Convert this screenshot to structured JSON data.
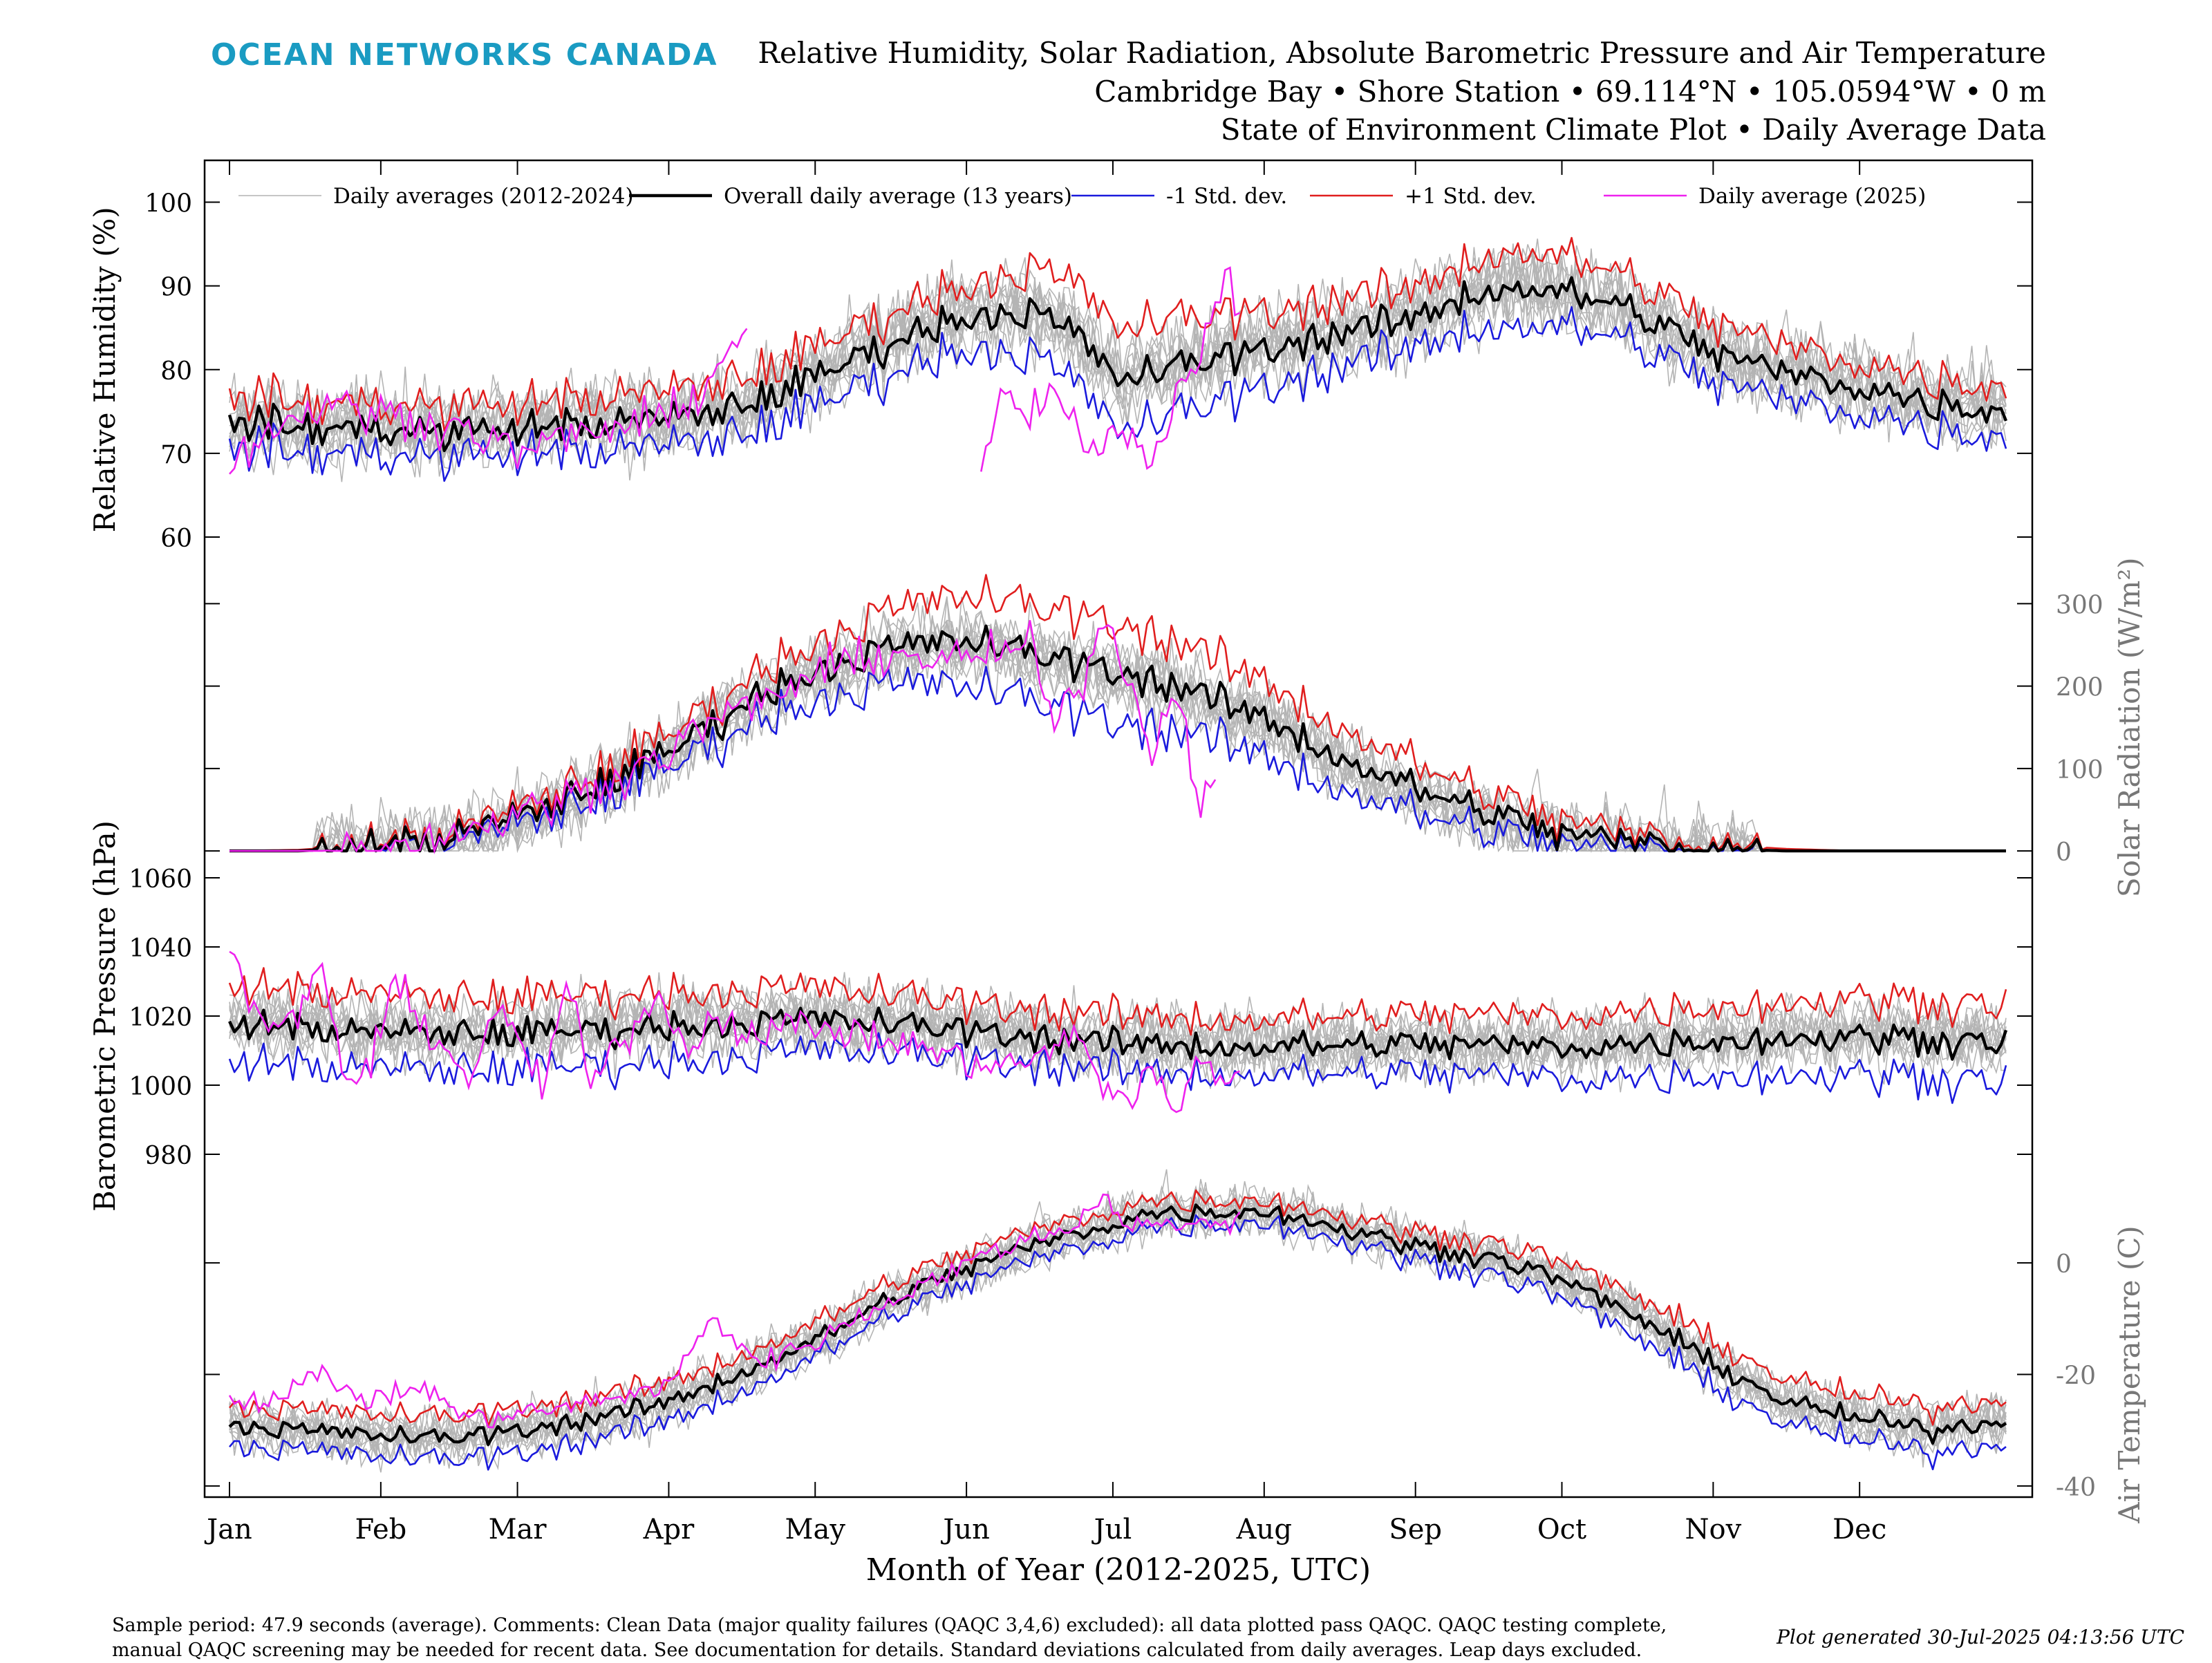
{
  "brand": "OCEAN NETWORKS CANADA",
  "title": {
    "line1": "Relative Humidity, Solar Radiation, Absolute Barometric Pressure and Air Temperature",
    "line2": "Cambridge Bay • Shore Station • 69.114°N • 105.0594°W • 0 m",
    "line3": "State of Environment Climate Plot • Daily Average Data"
  },
  "footer": {
    "comments": "Sample period: 47.9 seconds (average). Comments: Clean Data (major quality failures (QAQC 3,4,6) excluded): all data plotted pass QAQC. QAQC testing complete, manual QAQC screening may be needed for recent data. See documentation for details. Standard deviations calculated from daily averages. Leap days excluded.",
    "generated": "Plot generated 30-Jul-2025 04:13:56 UTC"
  },
  "colors": {
    "yearly": "#b4b4b4",
    "mean": "#000000",
    "minus_sd": "#1a1adc",
    "plus_sd": "#e01e1e",
    "current": "#ee22ee",
    "right_axis_text": "#777777"
  },
  "chart_data": {
    "type": "line",
    "xlabel": "Month of Year (2012-2025, UTC)",
    "x_categories": [
      "Jan",
      "Feb",
      "Mar",
      "Apr",
      "May",
      "Jun",
      "Jul",
      "Aug",
      "Sep",
      "Oct",
      "Nov",
      "Dec"
    ],
    "x_month_start_day": [
      1,
      32,
      60,
      91,
      121,
      152,
      182,
      213,
      244,
      274,
      305,
      335
    ],
    "xlim": [
      1,
      365
    ],
    "legend": {
      "placement": "top",
      "entries": [
        {
          "name": "Daily averages (2012-2024)",
          "key": "yearly"
        },
        {
          "name": "Overall daily average (13 years)",
          "key": "mean"
        },
        {
          "name": "-1 Std. dev.",
          "key": "minus_sd"
        },
        {
          "name": "+1 Std. dev.",
          "key": "plus_sd"
        },
        {
          "name": "Daily average (2025)",
          "key": "current"
        }
      ]
    },
    "panels": [
      {
        "id": "humidity",
        "ylabel": "Relative Humidity (%)",
        "axis_side": "left",
        "ylim": [
          60,
          105
        ],
        "yticks": [
          60,
          70,
          80,
          90,
          100
        ],
        "current_end_day": 208,
        "current_gap": [
          107,
          155
        ],
        "mean": {
          "day": [
            1,
            15,
            32,
            45,
            60,
            75,
            91,
            105,
            121,
            135,
            152,
            165,
            175,
            182,
            190,
            200,
            213,
            225,
            244,
            255,
            265,
            274,
            285,
            295,
            305,
            320,
            335,
            350,
            365
          ],
          "value": [
            74,
            73,
            73,
            72.5,
            73,
            73.5,
            74,
            75.5,
            79,
            83,
            86.5,
            87,
            84,
            79,
            79.5,
            81,
            82.5,
            84,
            86,
            89,
            90,
            89,
            88,
            85,
            82,
            79.5,
            78,
            76,
            75
          ]
        },
        "sd": {
          "day": [
            1,
            60,
            121,
            152,
            175,
            190,
            213,
            244,
            265,
            280,
            305,
            335,
            365
          ],
          "value": [
            3,
            3,
            3.5,
            3.8,
            6,
            6,
            4.5,
            3.5,
            4.5,
            4,
            3.5,
            3,
            3
          ]
        },
        "current_points": {
          "day": [
            1,
            10,
            20,
            30,
            40,
            50,
            60,
            70,
            80,
            90,
            100,
            107,
            155,
            160,
            165,
            170,
            175,
            180,
            185,
            190,
            195,
            200,
            205,
            208
          ],
          "value": [
            69,
            73,
            76,
            75,
            74,
            73,
            70,
            72,
            73,
            74,
            79,
            86,
            68,
            77,
            74,
            78,
            71,
            70,
            74,
            68,
            78,
            82,
            92,
            88
          ]
        },
        "noise": 2.2,
        "year_spread": 3.5
      },
      {
        "id": "solar",
        "ylabel": "Solar Radiation (W/m²)",
        "axis_side": "right",
        "ylim": [
          -15,
          380
        ],
        "yticks": [
          0,
          100,
          200,
          300
        ],
        "current_end_day": 203,
        "mean": {
          "day": [
            1,
            15,
            32,
            45,
            60,
            75,
            91,
            105,
            121,
            135,
            152,
            165,
            182,
            195,
            213,
            230,
            244,
            260,
            274,
            290,
            305,
            320,
            335,
            365
          ],
          "value": [
            0,
            0,
            5,
            15,
            40,
            75,
            120,
            175,
            220,
            245,
            255,
            240,
            220,
            200,
            160,
            110,
            75,
            45,
            20,
            10,
            3,
            0,
            0,
            0
          ]
        },
        "sd": {
          "day": [
            1,
            32,
            60,
            91,
            121,
            152,
            182,
            213,
            244,
            274,
            305,
            335,
            365
          ],
          "value": [
            0,
            3,
            10,
            20,
            35,
            55,
            60,
            45,
            30,
            15,
            5,
            0,
            0
          ]
        },
        "current_points": {
          "day": [
            1,
            20,
            32,
            45,
            60,
            75,
            91,
            100,
            110,
            121,
            135,
            150,
            165,
            170,
            175,
            180,
            185,
            190,
            195,
            200,
            203
          ],
          "value": [
            0,
            0,
            6,
            18,
            45,
            75,
            120,
            160,
            180,
            215,
            240,
            230,
            250,
            150,
            200,
            280,
            220,
            120,
            200,
            60,
            100
          ]
        },
        "noise": 22,
        "year_spread": 30,
        "nonneg": true
      },
      {
        "id": "pressure",
        "ylabel": "Barometric Pressure (hPa)",
        "axis_side": "left",
        "ylim": [
          970,
          1070
        ],
        "yticks": [
          980,
          1000,
          1020,
          1040,
          1060
        ],
        "current_end_day": 208,
        "mean": {
          "day": [
            1,
            32,
            60,
            91,
            121,
            152,
            182,
            213,
            244,
            274,
            305,
            335,
            365
          ],
          "value": [
            1018,
            1015,
            1015,
            1017,
            1019,
            1016,
            1012,
            1011,
            1012,
            1011,
            1013,
            1014,
            1013
          ]
        },
        "sd": {
          "day": [
            1,
            91,
            152,
            213,
            274,
            335,
            365
          ],
          "value": [
            11,
            10,
            8,
            8,
            9,
            11,
            11
          ]
        },
        "current_points": {
          "day": [
            1,
            5,
            10,
            15,
            20,
            25,
            30,
            35,
            40,
            45,
            50,
            55,
            60,
            65,
            70,
            75,
            80,
            85,
            90,
            95,
            100,
            110,
            120,
            130,
            140,
            150,
            160,
            170,
            175,
            180,
            185,
            190,
            195,
            200,
            205,
            208
          ],
          "value": [
            1038,
            1025,
            1015,
            1020,
            1035,
            1000,
            1005,
            1030,
            1020,
            1010,
            1002,
            1020,
            1015,
            998,
            1030,
            1000,
            1010,
            1020,
            1025,
            1010,
            1020,
            1015,
            1018,
            1014,
            1012,
            1008,
            1005,
            1010,
            1015,
            1000,
            995,
            1005,
            990,
            1010,
            1000,
            1005
          ]
        },
        "noise": 4.5,
        "year_spread": 7
      },
      {
        "id": "temperature",
        "ylabel": "Air Temperature (C)",
        "axis_side": "right",
        "ylim": [
          -42,
          17
        ],
        "yticks": [
          -40,
          -20,
          0
        ],
        "current_end_day": 208,
        "mean": {
          "day": [
            1,
            15,
            32,
            45,
            60,
            75,
            91,
            105,
            121,
            135,
            152,
            165,
            182,
            190,
            200,
            213,
            225,
            244,
            260,
            274,
            290,
            305,
            320,
            335,
            350,
            365
          ],
          "value": [
            -29,
            -30,
            -31,
            -31.5,
            -30,
            -28,
            -25,
            -20,
            -14,
            -7,
            -1,
            3,
            7,
            9,
            9,
            9.5,
            7,
            3,
            1,
            -3,
            -10,
            -18,
            -25,
            -28,
            -30,
            -28
          ]
        },
        "sd": {
          "day": [
            1,
            60,
            121,
            182,
            213,
            244,
            305,
            335,
            365
          ],
          "value": [
            3.5,
            4,
            3,
            2.5,
            2,
            2.5,
            4,
            4,
            4
          ]
        },
        "current_points": {
          "day": [
            1,
            10,
            20,
            30,
            40,
            50,
            60,
            70,
            80,
            91,
            100,
            110,
            121,
            140,
            160,
            175,
            180,
            185,
            190,
            195,
            200,
            208
          ],
          "value": [
            -25,
            -24,
            -20,
            -25,
            -22,
            -28,
            -27,
            -26,
            -24,
            -22,
            -10,
            -18,
            -14,
            -5,
            3,
            7,
            13,
            6,
            8,
            6,
            7,
            8
          ]
        },
        "noise": 1.8,
        "year_spread": 3.2
      }
    ]
  }
}
